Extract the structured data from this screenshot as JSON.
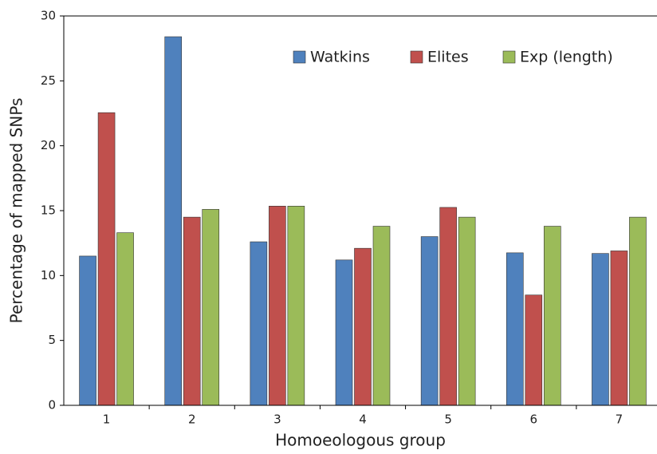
{
  "chart_data": {
    "type": "bar",
    "x_label": "Homoeologous group",
    "y_label": "Percentage of mapped SNPs",
    "categories": [
      "1",
      "2",
      "3",
      "4",
      "5",
      "6",
      "7"
    ],
    "series": [
      {
        "name": "Watkins",
        "color": "#4f81bd",
        "values": [
          11.5,
          28.4,
          12.6,
          11.2,
          13.0,
          11.75,
          11.7
        ]
      },
      {
        "name": "Elites",
        "color": "#c0504d",
        "values": [
          22.55,
          14.5,
          15.35,
          12.1,
          15.25,
          8.5,
          11.9
        ]
      },
      {
        "name": "Exp (length)",
        "color": "#9bbb59",
        "values": [
          13.3,
          15.1,
          15.35,
          13.8,
          14.5,
          13.8,
          14.5
        ]
      }
    ],
    "ylim": [
      0,
      30
    ],
    "yticks": [
      0,
      5,
      10,
      15,
      20,
      25,
      30
    ],
    "legend": "top-right"
  }
}
